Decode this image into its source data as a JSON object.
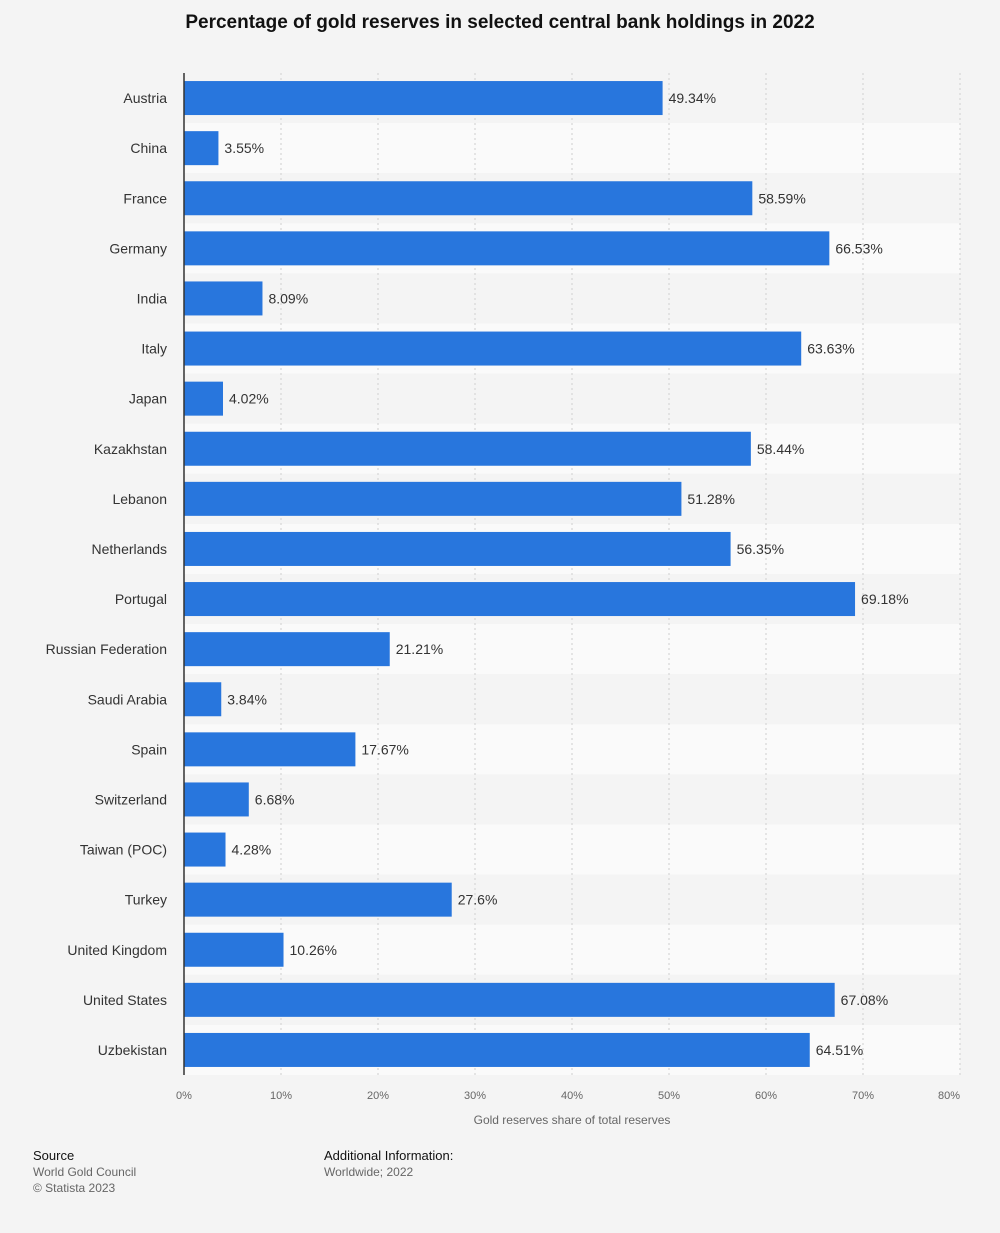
{
  "chart_data": {
    "type": "bar",
    "orientation": "horizontal",
    "title": "Percentage of gold reserves in selected central bank holdings in 2022",
    "xlabel": "Gold reserves share of total reserves",
    "ylabel": "",
    "xlim": [
      0,
      80
    ],
    "ticks": [
      0,
      10,
      20,
      30,
      40,
      50,
      60,
      70,
      80
    ],
    "tick_labels": [
      "0%",
      "10%",
      "20%",
      "30%",
      "40%",
      "50%",
      "60%",
      "70%",
      "80%"
    ],
    "grid": true,
    "bar_color": "#2876dd",
    "categories": [
      "Austria",
      "China",
      "France",
      "Germany",
      "India",
      "Italy",
      "Japan",
      "Kazakhstan",
      "Lebanon",
      "Netherlands",
      "Portugal",
      "Russian Federation",
      "Saudi Arabia",
      "Spain",
      "Switzerland",
      "Taiwan (POC)",
      "Turkey",
      "United Kingdom",
      "United States",
      "Uzbekistan"
    ],
    "values": [
      49.34,
      3.55,
      58.59,
      66.53,
      8.09,
      63.63,
      4.02,
      58.44,
      51.28,
      56.35,
      69.18,
      21.21,
      3.84,
      17.67,
      6.68,
      4.28,
      27.6,
      10.26,
      67.08,
      64.51
    ],
    "value_labels": [
      "49.34%",
      "3.55%",
      "58.59%",
      "66.53%",
      "8.09%",
      "63.63%",
      "4.02%",
      "58.44%",
      "51.28%",
      "56.35%",
      "69.18%",
      "21.21%",
      "3.84%",
      "17.67%",
      "6.68%",
      "4.28%",
      "27.6%",
      "10.26%",
      "67.08%",
      "64.51%"
    ]
  },
  "footer": {
    "source_heading": "Source",
    "source_name": "World Gold Council",
    "copyright": "© Statista 2023",
    "info_heading": "Additional Information:",
    "info_text": "Worldwide; 2022"
  }
}
